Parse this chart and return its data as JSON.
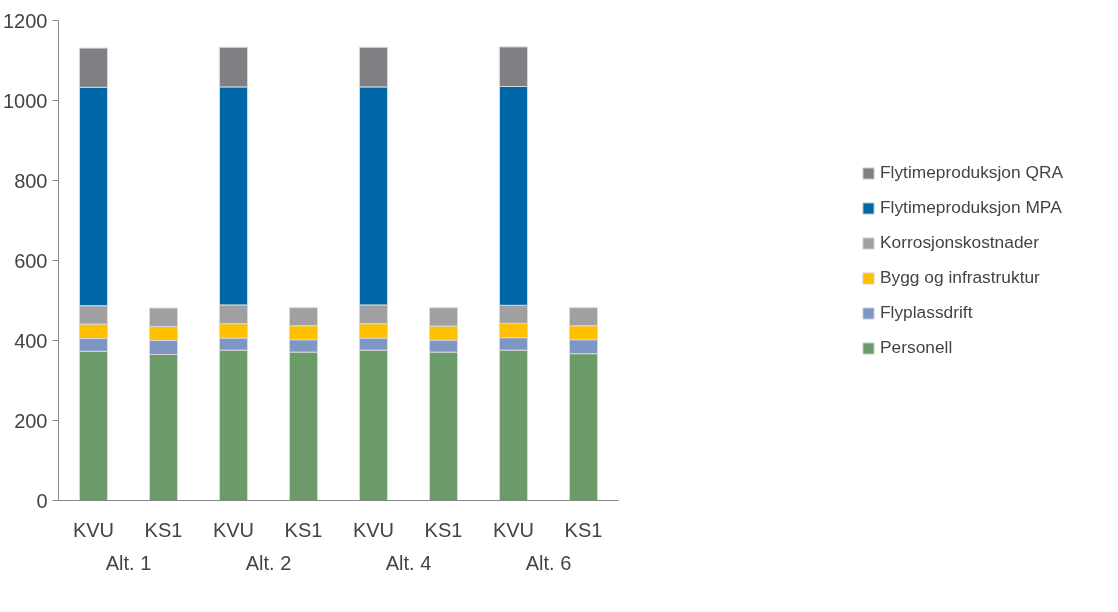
{
  "chart_data": {
    "type": "bar",
    "stacked": true,
    "categories": [
      "KVU",
      "KS1",
      "KVU",
      "KS1",
      "KVU",
      "KS1",
      "KVU",
      "KS1"
    ],
    "annotations": [
      "Alt. 1",
      "Alt. 2",
      "Alt. 4",
      "Alt. 6"
    ],
    "series": [
      {
        "name": "Personell",
        "color": "#6b9b69",
        "values": [
          373,
          365,
          376,
          371,
          376,
          371,
          376,
          367
        ]
      },
      {
        "name": "Flyplassdrift",
        "color": "#7f96c4",
        "values": [
          32,
          35,
          30,
          31,
          30,
          30,
          31,
          35
        ]
      },
      {
        "name": "Bygg og infrastruktur",
        "color": "#ffc000",
        "values": [
          36,
          35,
          36,
          35,
          36,
          35,
          36,
          35
        ]
      },
      {
        "name": "Korrosjonskostnader",
        "color": "#a0a0a2",
        "values": [
          46,
          46,
          47,
          45,
          47,
          46,
          45,
          45
        ]
      },
      {
        "name": "Flytimeproduksjon MPA",
        "color": "#0066a8",
        "values": [
          546,
          null,
          545,
          null,
          545,
          null,
          547,
          null
        ]
      },
      {
        "name": "Flytimeproduksjon QRA",
        "color": "#808084",
        "values": [
          98,
          null,
          99,
          null,
          99,
          null,
          99,
          null
        ]
      }
    ],
    "ylim": [
      0,
      1200
    ],
    "yticks": [
      0,
      200,
      400,
      600,
      800,
      1000,
      1200
    ],
    "grid": false,
    "legend": "right"
  }
}
